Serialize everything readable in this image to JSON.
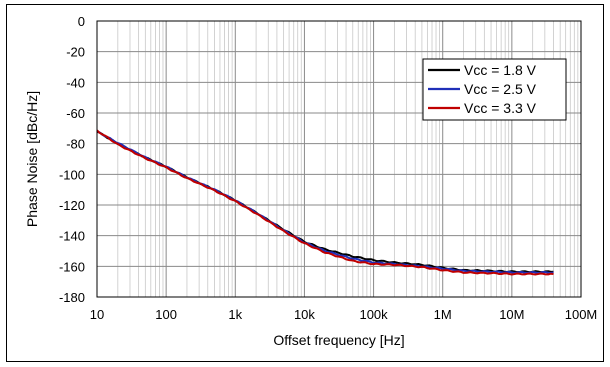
{
  "chart_data": {
    "type": "line",
    "title": "",
    "xlabel": "Offset frequency [Hz]",
    "ylabel": "Phase Noise [dBc/Hz]",
    "x_scale": "log",
    "xlim": [
      10,
      100000000
    ],
    "ylim": [
      -180,
      0
    ],
    "x_tick_values": [
      10,
      100,
      1000,
      10000,
      100000,
      1000000,
      10000000,
      100000000
    ],
    "x_tick_labels": [
      "10",
      "100",
      "1k",
      "10k",
      "100k",
      "1M",
      "10M",
      "100M"
    ],
    "y_tick_values": [
      0,
      -20,
      -40,
      -60,
      -80,
      -100,
      -120,
      -140,
      -160,
      -180
    ],
    "y_tick_labels": [
      "0",
      "-20",
      "-40",
      "-60",
      "-80",
      "-100",
      "-120",
      "-140",
      "-160",
      "-180"
    ],
    "grid": true,
    "legend_position": "top-right",
    "series": [
      {
        "name": "Vcc = 1.8 V",
        "color": "#000000",
        "x": [
          10,
          20,
          50,
          100,
          200,
          500,
          1000,
          2000,
          5000,
          10000,
          20000,
          50000,
          100000,
          200000,
          500000,
          1000000,
          2000000,
          5000000,
          10000000,
          20000000,
          40000000
        ],
        "y": [
          -72,
          -80,
          -89,
          -95,
          -102,
          -110,
          -117,
          -125,
          -136,
          -144,
          -149,
          -153.5,
          -156,
          -157.5,
          -159,
          -161,
          -162.5,
          -163,
          -163.5,
          -163.5,
          -163.5
        ]
      },
      {
        "name": "Vcc = 2.5 V",
        "color": "#1f2fb8",
        "x": [
          10,
          20,
          50,
          100,
          200,
          500,
          1000,
          2000,
          5000,
          10000,
          20000,
          50000,
          100000,
          200000,
          500000,
          1000000,
          2000000,
          5000000,
          10000000,
          20000000,
          40000000
        ],
        "y": [
          -72,
          -79.5,
          -89,
          -95,
          -102,
          -110,
          -117,
          -125,
          -136.5,
          -144.5,
          -150,
          -155,
          -157.5,
          -158.5,
          -160,
          -161.5,
          -163,
          -163.5,
          -164,
          -164,
          -164
        ]
      },
      {
        "name": "Vcc = 3.3 V",
        "color": "#c00000",
        "x": [
          10,
          20,
          50,
          100,
          200,
          500,
          1000,
          2000,
          5000,
          10000,
          20000,
          50000,
          100000,
          200000,
          500000,
          1000000,
          2000000,
          5000000,
          10000000,
          20000000,
          40000000
        ],
        "y": [
          -71.5,
          -80.5,
          -89.5,
          -95.5,
          -102.5,
          -110.5,
          -117.5,
          -125.5,
          -137,
          -145,
          -151,
          -156.5,
          -158.5,
          -159,
          -160.5,
          -162.5,
          -164,
          -164.5,
          -165,
          -165,
          -165
        ]
      }
    ]
  }
}
